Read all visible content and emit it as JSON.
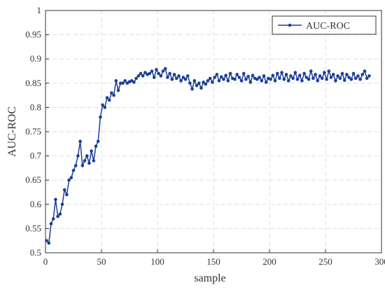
{
  "chart_data": {
    "type": "line",
    "xlabel": "sample",
    "ylabel": "AUC-ROC",
    "x": [
      1,
      3,
      5,
      7,
      9,
      11,
      13,
      15,
      17,
      19,
      21,
      23,
      25,
      27,
      29,
      31,
      33,
      35,
      37,
      39,
      41,
      43,
      45,
      47,
      49,
      51,
      53,
      55,
      57,
      59,
      61,
      63,
      65,
      67,
      69,
      71,
      73,
      75,
      77,
      79,
      81,
      83,
      85,
      87,
      89,
      91,
      93,
      95,
      97,
      99,
      101,
      103,
      105,
      107,
      109,
      111,
      113,
      115,
      117,
      119,
      121,
      123,
      125,
      127,
      129,
      131,
      133,
      135,
      137,
      139,
      141,
      143,
      145,
      147,
      149,
      151,
      153,
      155,
      157,
      159,
      161,
      163,
      165,
      167,
      169,
      171,
      173,
      175,
      177,
      179,
      181,
      183,
      185,
      187,
      189,
      191,
      193,
      195,
      197,
      199,
      201,
      203,
      205,
      207,
      209,
      211,
      213,
      215,
      217,
      219,
      221,
      223,
      225,
      227,
      229,
      231,
      233,
      235,
      237,
      239,
      241,
      243,
      245,
      247,
      249,
      251,
      253,
      255,
      257,
      259,
      261,
      263,
      265,
      267,
      269,
      271,
      273,
      275,
      277,
      279,
      281,
      283,
      285,
      287,
      289
    ],
    "series": [
      {
        "name": "AUC-ROC",
        "color": "#1c3f95",
        "values": [
          0.525,
          0.52,
          0.56,
          0.57,
          0.61,
          0.575,
          0.58,
          0.6,
          0.63,
          0.62,
          0.65,
          0.655,
          0.67,
          0.68,
          0.7,
          0.73,
          0.68,
          0.69,
          0.7,
          0.685,
          0.71,
          0.69,
          0.72,
          0.73,
          0.78,
          0.805,
          0.8,
          0.82,
          0.815,
          0.83,
          0.825,
          0.855,
          0.835,
          0.85,
          0.85,
          0.855,
          0.85,
          0.853,
          0.855,
          0.852,
          0.86,
          0.865,
          0.87,
          0.865,
          0.872,
          0.868,
          0.87,
          0.875,
          0.862,
          0.878,
          0.87,
          0.865,
          0.875,
          0.88,
          0.862,
          0.87,
          0.858,
          0.868,
          0.86,
          0.865,
          0.855,
          0.862,
          0.858,
          0.865,
          0.85,
          0.838,
          0.855,
          0.845,
          0.85,
          0.84,
          0.852,
          0.848,
          0.855,
          0.86,
          0.852,
          0.862,
          0.868,
          0.855,
          0.863,
          0.858,
          0.866,
          0.855,
          0.87,
          0.86,
          0.858,
          0.868,
          0.862,
          0.855,
          0.87,
          0.858,
          0.864,
          0.852,
          0.866,
          0.86,
          0.858,
          0.862,
          0.855,
          0.865,
          0.852,
          0.86,
          0.858,
          0.866,
          0.855,
          0.87,
          0.86,
          0.872,
          0.858,
          0.868,
          0.855,
          0.865,
          0.86,
          0.872,
          0.858,
          0.866,
          0.855,
          0.87,
          0.862,
          0.858,
          0.875,
          0.86,
          0.868,
          0.855,
          0.865,
          0.86,
          0.872,
          0.858,
          0.875,
          0.862,
          0.868,
          0.855,
          0.865,
          0.86,
          0.87,
          0.856,
          0.868,
          0.862,
          0.858,
          0.87,
          0.86,
          0.865,
          0.858,
          0.868,
          0.875,
          0.86,
          0.865
        ]
      }
    ],
    "xlim": [
      0,
      300
    ],
    "xticks": [
      0,
      50,
      100,
      150,
      200,
      250,
      300
    ],
    "ylim": [
      0.5,
      1
    ],
    "yticks": [
      0.5,
      0.55,
      0.6,
      0.65,
      0.7,
      0.75,
      0.8,
      0.85,
      0.9,
      0.95,
      1
    ],
    "grid": true,
    "legend": "northeast"
  }
}
